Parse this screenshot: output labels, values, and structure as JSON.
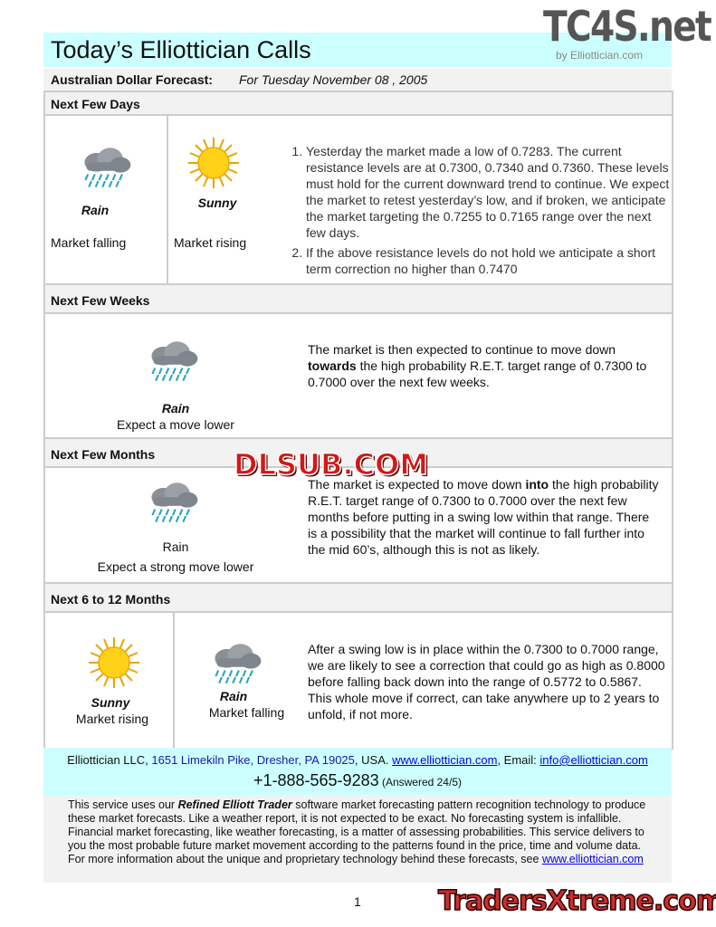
{
  "header": {
    "title": "Today’s Elliottician Calls",
    "byline": "by Elliottician.com"
  },
  "subheader": {
    "label": "Australian Dollar Forecast:",
    "date": "For Tuesday November  08 , 2005"
  },
  "sections": {
    "days": {
      "title": "Next Few Days",
      "cells": [
        {
          "icon": "rain-cloud-icon",
          "label": "Rain",
          "caption": "Market falling"
        },
        {
          "icon": "sun-icon",
          "label": "Sunny",
          "caption": "Market rising"
        }
      ],
      "points": [
        "Yesterday the market made a low of 0.7283. The current resistance levels are at 0.7300, 0.7340 and 0.7360. These levels must hold for the current downward trend to continue. We expect the market to retest yesterday’s low, and if broken, we anticipate the market targeting the 0.7255 to 0.7165 range over the next few days.",
        "If the above resistance levels do not hold we anticipate a short term correction no higher than 0.7470"
      ]
    },
    "weeks": {
      "title": "Next Few Weeks",
      "icon": "rain-cloud-icon",
      "label": "Rain",
      "caption": "Expect a move lower",
      "text_pre": "The market is then expected to continue to move down ",
      "text_bold": "towards",
      "text_post": " the high probability R.E.T. target range of 0.7300 to 0.7000 over the next few weeks."
    },
    "months": {
      "title": "Next Few Months",
      "icon": "rain-cloud-icon",
      "label": "Rain",
      "caption": "Expect a strong move lower",
      "text_pre": "The market is expected to move down ",
      "text_bold": "into",
      "text_post": " the high probability R.E.T. target range of 0.7300 to 0.7000 over the next few months before putting in a swing low within that range.  There is a possibility that the market will continue to fall further into the mid 60’s, although this is not as likely."
    },
    "year": {
      "title": "Next 6 to 12 Months",
      "cells": [
        {
          "icon": "sun-icon",
          "label": "Sunny",
          "caption": "Market rising"
        },
        {
          "icon": "rain-cloud-icon",
          "label": "Rain",
          "caption": "Market falling"
        }
      ],
      "text": "After a swing low is in place within the 0.7300 to 0.7000 range, we are likely to see a correction that could go as high as 0.8000 before falling back down into the range of 0.5772 to 0.5867. This whole move if correct, can take anywhere up to 2 years to unfold, if not more."
    }
  },
  "footer": {
    "company": "Elliottician LLC, ",
    "address": "1651 Limekiln Pike, Dresher, PA 19025",
    "country": ", USA. ",
    "website": "www.elliottician.com",
    "email_label": ", Email: ",
    "email": "info@elliottician.com",
    "phone": "+1-888-565-9283",
    "phone_note": " (Answered 24/5)"
  },
  "disclaimer": {
    "pre": "This service uses our ",
    "bold": "Refined Elliott Trader",
    "post": " software market forecasting pattern recognition technology to produce these market forecasts. Like a weather report, it is not expected to be exact. No forecasting system is infallible. Financial market forecasting, like weather forecasting, is a matter of assessing probabilities. This service delivers to you the most probable future market movement according to the patterns found in the price, time and volume data. For more information about the unique and proprietary technology behind these forecasts, see ",
    "link": "www.elliottician.com"
  },
  "page_number": "1",
  "watermarks": [
    "TC4S.net",
    "DLSUB.COM",
    "TradersXtreme.com"
  ],
  "colors": {
    "header_bg": "#ccffff",
    "section_bg": "#f2f2f2",
    "link": "#0000ee"
  }
}
